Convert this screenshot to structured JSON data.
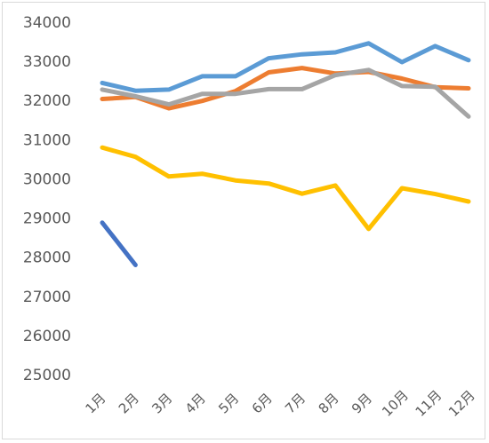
{
  "chart_data": {
    "type": "line",
    "title": "",
    "xlabel": "",
    "ylabel": "",
    "categories": [
      "1月",
      "2月",
      "3月",
      "4月",
      "5月",
      "6月",
      "7月",
      "8月",
      "9月",
      "10月",
      "11月",
      "12月"
    ],
    "ylim": [
      25000,
      34000
    ],
    "yticks": [
      25000,
      26000,
      27000,
      28000,
      29000,
      30000,
      31000,
      32000,
      33000,
      34000
    ],
    "grid": false,
    "legend": "none",
    "series": [
      {
        "color": "#5b9bd5",
        "values": [
          32450,
          32250,
          32280,
          32620,
          32620,
          33080,
          33180,
          33230,
          33460,
          32980,
          33390,
          33030
        ]
      },
      {
        "color": "#ed7d31",
        "values": [
          32040,
          32090,
          31800,
          31990,
          32240,
          32720,
          32830,
          32690,
          32730,
          32560,
          32340,
          32310
        ]
      },
      {
        "color": "#a5a5a5",
        "values": [
          32280,
          32110,
          31900,
          32170,
          32170,
          32290,
          32290,
          32650,
          32780,
          32370,
          32350,
          31590
        ]
      },
      {
        "color": "#ffc000",
        "values": [
          30800,
          30560,
          30060,
          30130,
          29960,
          29880,
          29620,
          29830,
          28720,
          29760,
          29610,
          29420
        ]
      },
      {
        "color": "#4472c4",
        "values": [
          28880,
          27800,
          null,
          null,
          null,
          null,
          null,
          null,
          null,
          null,
          null,
          null
        ]
      }
    ]
  }
}
